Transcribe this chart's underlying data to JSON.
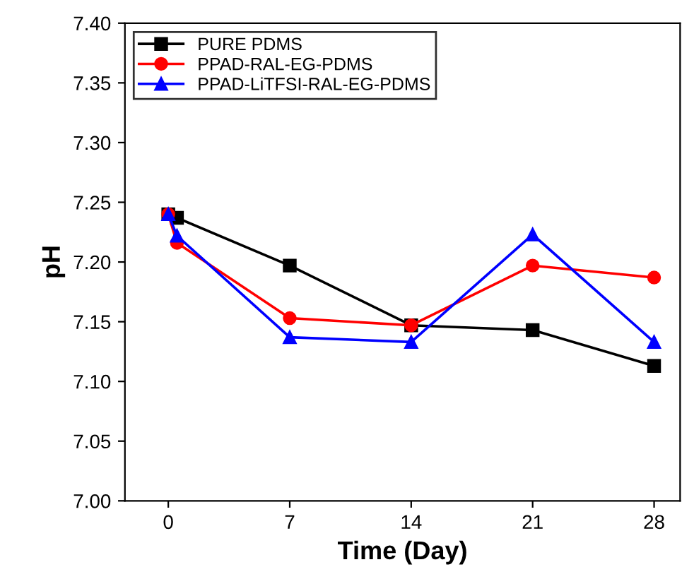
{
  "chart_data": {
    "type": "line",
    "xlabel": "Time (Day)",
    "ylabel": "pH",
    "x": [
      0,
      0.5,
      7,
      14,
      21,
      28
    ],
    "series": [
      {
        "name": "PURE PDMS",
        "color": "#000000",
        "marker": "square",
        "values": [
          7.24,
          7.237,
          7.197,
          7.147,
          7.143,
          7.113
        ]
      },
      {
        "name": "PPAD-RAL-EG-PDMS",
        "color": "#ff0000",
        "marker": "circle",
        "values": [
          7.24,
          7.216,
          7.153,
          7.147,
          7.197,
          7.187
        ]
      },
      {
        "name": "PPAD-LiTFSI-RAL-EG-PDMS",
        "color": "#0000ff",
        "marker": "triangle",
        "values": [
          7.24,
          7.222,
          7.137,
          7.133,
          7.223,
          7.133
        ]
      }
    ],
    "xlim": [
      -2.5,
      29.5
    ],
    "xticks": [
      0,
      7,
      14,
      21,
      28
    ],
    "ylim": [
      7.0,
      7.4
    ],
    "yticks": [
      {
        "value": 7.0,
        "label": "7.00"
      },
      {
        "value": 7.05,
        "label": "7.05"
      },
      {
        "value": 7.1,
        "label": "7.10"
      },
      {
        "value": 7.15,
        "label": "7.15"
      },
      {
        "value": 7.2,
        "label": "7.20"
      },
      {
        "value": 7.25,
        "label": "7.25"
      },
      {
        "value": 7.3,
        "label": "7.30"
      },
      {
        "value": 7.35,
        "label": "7.35"
      },
      {
        "value": 7.4,
        "label": "7.40"
      }
    ],
    "grid": false,
    "legend": "top left",
    "line_style": "solid"
  }
}
